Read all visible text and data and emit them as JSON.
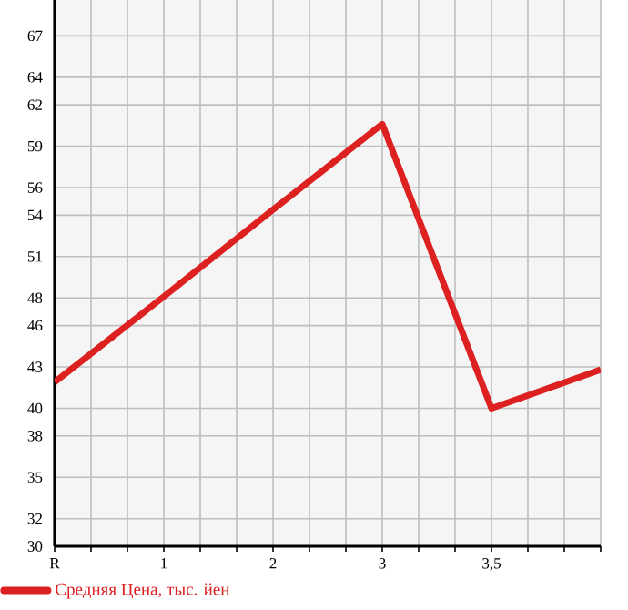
{
  "chart_data": {
    "type": "line",
    "categories": [
      "R",
      "1",
      "2",
      "3",
      "3,5",
      null
    ],
    "ylim": [
      30,
      69.6
    ],
    "yticks": [
      30,
      32,
      35,
      38,
      40,
      43,
      46,
      48,
      51,
      54,
      56,
      59,
      62,
      64,
      67
    ],
    "series": [
      {
        "name": "Средняя Цена, тыс. йен",
        "color": "#dd2020",
        "values": [
          41.9,
          48.1,
          54.4,
          60.6,
          40.0,
          42.8
        ]
      }
    ],
    "grid": true,
    "legend": "bottom",
    "marker": "none",
    "line_style": "solid"
  }
}
